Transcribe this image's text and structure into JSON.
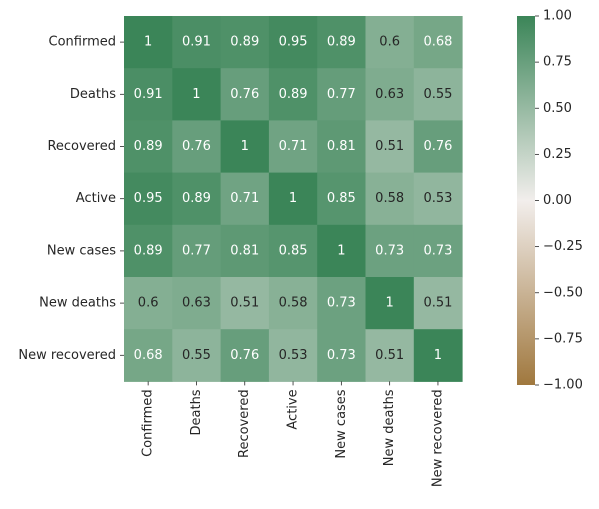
{
  "chart_data": {
    "type": "heatmap",
    "title": "",
    "xlabel": "",
    "ylabel": "",
    "rows": [
      "Confirmed",
      "Deaths",
      "Recovered",
      "Active",
      "New cases",
      "New deaths",
      "New recovered"
    ],
    "columns": [
      "Confirmed",
      "Deaths",
      "Recovered",
      "Active",
      "New cases",
      "New deaths",
      "New recovered"
    ],
    "values": [
      [
        1,
        0.91,
        0.89,
        0.95,
        0.89,
        0.6,
        0.68
      ],
      [
        0.91,
        1,
        0.76,
        0.89,
        0.77,
        0.63,
        0.55
      ],
      [
        0.89,
        0.76,
        1,
        0.71,
        0.81,
        0.51,
        0.76
      ],
      [
        0.95,
        0.89,
        0.71,
        1,
        0.85,
        0.58,
        0.53
      ],
      [
        0.89,
        0.77,
        0.81,
        0.85,
        1,
        0.73,
        0.73
      ],
      [
        0.6,
        0.63,
        0.51,
        0.58,
        0.73,
        1,
        0.51
      ],
      [
        0.68,
        0.55,
        0.76,
        0.53,
        0.73,
        0.51,
        1
      ]
    ],
    "colorbar": {
      "range": [
        -1,
        1
      ],
      "ticks": [
        1,
        0.75,
        0.5,
        0.25,
        0,
        -0.25,
        -0.5,
        -0.75,
        -1
      ],
      "tick_labels": [
        "1.00",
        "0.75",
        "0.50",
        "0.25",
        "0.00",
        "−0.25",
        "−0.50",
        "−0.75",
        "−1.00"
      ],
      "color_low": "#a0783e",
      "color_mid": "#f2eeec",
      "color_high": "#3b8558"
    },
    "annotations": true,
    "grid": false,
    "legend": "none"
  }
}
